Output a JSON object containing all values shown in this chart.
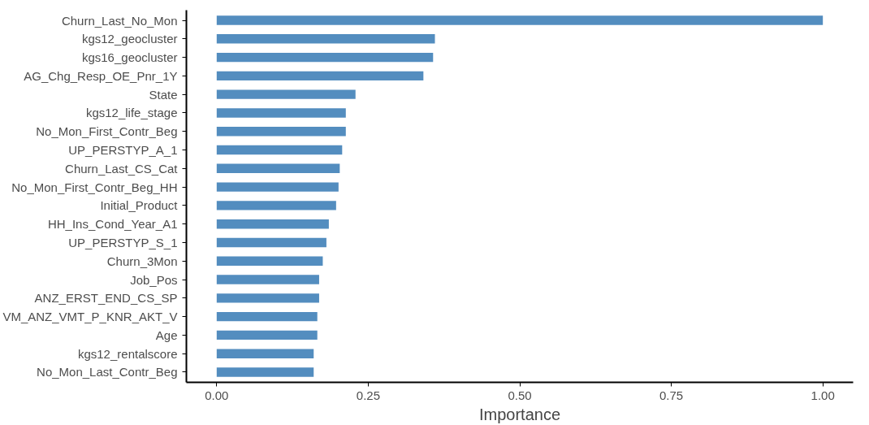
{
  "chart_data": {
    "type": "bar",
    "orientation": "horizontal",
    "xlabel": "Importance",
    "categories": [
      "Churn_Last_No_Mon",
      "kgs12_geocluster",
      "kgs16_geocluster",
      "AG_Chg_Resp_OE_Pnr_1Y",
      "State",
      "kgs12_life_stage",
      "No_Mon_First_Contr_Beg",
      "UP_PERSTYP_A_1",
      "Churn_Last_CS_Cat",
      "No_Mon_First_Contr_Beg_HH",
      "Initial_Product",
      "HH_Ins_Cond_Year_A1",
      "UP_PERSTYP_S_1",
      "Churn_3Mon",
      "Job_Pos",
      "ANZ_ERST_END_CS_SP",
      "VM_ANZ_VMT_P_KNR_AKT_V",
      "Age",
      "kgs12_rentalscore",
      "No_Mon_Last_Contr_Beg"
    ],
    "values": [
      1.0,
      0.36,
      0.357,
      0.341,
      0.229,
      0.213,
      0.213,
      0.207,
      0.203,
      0.201,
      0.197,
      0.185,
      0.181,
      0.175,
      0.169,
      0.169,
      0.166,
      0.166,
      0.16,
      0.16
    ],
    "color": "#538dbf",
    "xlim": [
      -0.05,
      1.05
    ],
    "xticks": [
      {
        "value": 0,
        "label": "0.00"
      },
      {
        "value": 0.25,
        "label": "0.25"
      },
      {
        "value": 0.5,
        "label": "0.50"
      },
      {
        "value": 0.75,
        "label": "0.75"
      },
      {
        "value": 1,
        "label": "1.00"
      }
    ],
    "grid": false
  }
}
